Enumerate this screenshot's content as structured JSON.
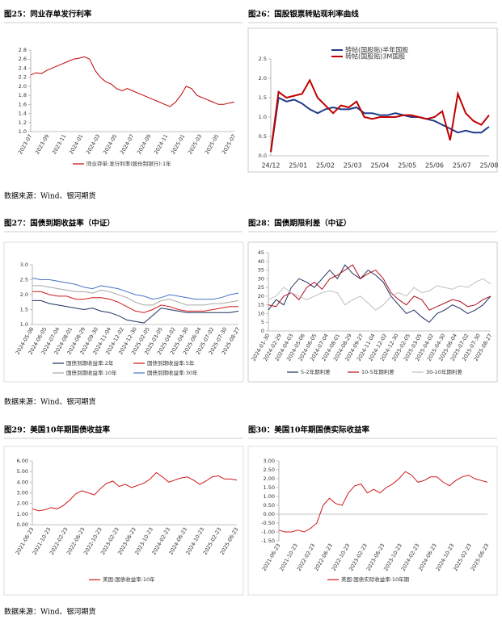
{
  "chart_data": [
    {
      "type": "line",
      "title": "图25：同业存单发行利率",
      "xticks": [
        "2023-07",
        "2023-09",
        "2023-11",
        "2024-01",
        "2024-03",
        "2024-05",
        "2024-07",
        "2024-09",
        "2024-11",
        "2025-01",
        "2025-03",
        "2025-05",
        "2025-07"
      ],
      "ylim": [
        1.0,
        2.8
      ],
      "yticks": [
        {
          "value": 1.0,
          "label": "1.0"
        },
        1.2,
        1.4,
        1.6,
        1.8,
        {
          "value": 2.0,
          "label": "2.0"
        },
        2.2,
        2.4,
        2.6,
        2.8
      ],
      "series": [
        {
          "name": "同业存单:发行利率(股份制银行):1年",
          "color": "#c00000",
          "values": [
            2.25,
            2.3,
            2.28,
            2.35,
            2.4,
            2.45,
            2.5,
            2.55,
            2.6,
            2.62,
            2.65,
            2.6,
            2.35,
            2.2,
            2.1,
            2.05,
            1.95,
            1.9,
            1.95,
            1.9,
            1.85,
            1.8,
            1.75,
            1.7,
            1.65,
            1.6,
            1.55,
            1.65,
            1.8,
            2.0,
            1.95,
            1.8,
            1.75,
            1.7,
            1.65,
            1.6,
            1.6,
            1.63,
            1.65
          ]
        }
      ]
    },
    {
      "type": "line",
      "title": "图26：国股银票转贴现利率曲线",
      "xticks": [
        "24/12",
        "25/01",
        "25/02",
        "25/03",
        "25/04",
        "25/05",
        "25/06",
        "25/07",
        "25/08"
      ],
      "ylim": [
        0,
        2.5
      ],
      "yticks": [
        {
          "value": 0,
          "label": "0.0"
        },
        0.5,
        {
          "value": 1,
          "label": "1.0"
        },
        1.5,
        {
          "value": 2,
          "label": "2.0"
        },
        2.5
      ],
      "series": [
        {
          "name": "转帖(国股贴)半年国股",
          "color": "#1f3c88",
          "values": [
            0.1,
            1.5,
            1.4,
            1.45,
            1.35,
            1.2,
            1.1,
            1.2,
            1.25,
            1.2,
            1.2,
            1.25,
            1.1,
            1.1,
            1.05,
            1.05,
            1.1,
            1.05,
            1.0,
            1.0,
            0.95,
            0.9,
            0.8,
            0.7,
            0.6,
            0.65,
            0.6,
            0.6,
            0.75
          ]
        },
        {
          "name": "转帖(国股贴)3M国股",
          "color": "#c00000",
          "values": [
            0.1,
            1.65,
            1.5,
            1.55,
            1.6,
            1.95,
            1.5,
            1.3,
            1.1,
            1.3,
            1.25,
            1.4,
            1.0,
            0.95,
            1.0,
            1.0,
            1.0,
            1.05,
            1.05,
            1.0,
            0.95,
            1.0,
            1.15,
            0.4,
            1.6,
            1.1,
            0.9,
            0.8,
            1.05
          ]
        }
      ]
    },
    {
      "type": "line",
      "title": "图27：国债到期收益率（中证）",
      "xticks": [
        "2024-05-08",
        "2024-06-05",
        "2024-07-04",
        "2024-08-01",
        "2024-08-29",
        "2024-09-30",
        "2024-11-04",
        "2024-12-02",
        "2024-12-30",
        "2025-02-05",
        "2025-03-05",
        "2025-04-02",
        "2025-04-30",
        "2025-06-04",
        "2025-07-02",
        "2025-07-30",
        "2025-08-27"
      ],
      "ylim": [
        1.0,
        3.0
      ],
      "yticks": [
        {
          "value": 1.0,
          "label": "1.0"
        },
        1.5,
        {
          "value": 2.0,
          "label": "2.0"
        },
        2.5,
        {
          "value": 3.0,
          "label": "3.0"
        }
      ],
      "series": [
        {
          "name": "国债到期收益率:2年",
          "color": "#1f2f5c",
          "values": [
            1.8,
            1.8,
            1.7,
            1.65,
            1.6,
            1.55,
            1.5,
            1.55,
            1.45,
            1.4,
            1.3,
            1.15,
            1.1,
            1.05,
            1.3,
            1.55,
            1.5,
            1.45,
            1.4,
            1.4,
            1.4,
            1.4,
            1.4,
            1.4,
            1.45
          ]
        },
        {
          "name": "国债到期收益率:5年",
          "color": "#d01818",
          "values": [
            2.1,
            2.1,
            2.0,
            1.95,
            1.95,
            1.85,
            1.85,
            1.9,
            1.9,
            1.85,
            1.75,
            1.6,
            1.45,
            1.4,
            1.5,
            1.65,
            1.6,
            1.5,
            1.45,
            1.45,
            1.45,
            1.5,
            1.55,
            1.6,
            1.6
          ]
        },
        {
          "name": "国债到期收益率:10年",
          "color": "#a6a6a6",
          "values": [
            2.3,
            2.3,
            2.25,
            2.2,
            2.15,
            2.1,
            2.1,
            2.05,
            2.15,
            2.1,
            2.0,
            1.9,
            1.75,
            1.65,
            1.65,
            1.8,
            1.85,
            1.75,
            1.65,
            1.65,
            1.65,
            1.7,
            1.7,
            1.75,
            1.8
          ]
        },
        {
          "name": "国债到期收益率:30年",
          "color": "#4472c4",
          "values": [
            2.55,
            2.5,
            2.5,
            2.45,
            2.4,
            2.35,
            2.25,
            2.2,
            2.3,
            2.25,
            2.2,
            2.1,
            2.0,
            1.95,
            1.85,
            1.9,
            2.0,
            1.95,
            1.9,
            1.85,
            1.85,
            1.85,
            1.9,
            2.0,
            2.05
          ]
        }
      ]
    },
    {
      "type": "line",
      "title": "图28：国债期限利差（中证）",
      "xticks": [
        "2024-01-30",
        "2024-02-29",
        "2024-04-03",
        "2024-05-06",
        "2024-06-05",
        "2024-07-04",
        "2024-08-01",
        "2024-08-29",
        "2024-09-27",
        "2024-11-04",
        "2024-12-02",
        "2024-12-30",
        "2025-02-05",
        "2025-03-05",
        "2025-04-02",
        "2025-04-30",
        "2025-06-04",
        "2025-07-02",
        "2025-07-30",
        "2025-08-27"
      ],
      "ylim": [
        0,
        45
      ],
      "yticks": [
        0,
        5,
        10,
        15,
        20,
        25,
        30,
        35,
        40,
        45
      ],
      "series": [
        {
          "name": "5-2年期利差",
          "color": "#1f2f5c",
          "values": [
            12,
            18,
            15,
            25,
            30,
            28,
            25,
            30,
            35,
            30,
            38,
            33,
            30,
            35,
            32,
            28,
            20,
            15,
            10,
            12,
            8,
            5,
            10,
            12,
            15,
            13,
            10,
            12,
            15,
            20
          ]
        },
        {
          "name": "10-5年期利差",
          "color": "#b01020",
          "values": [
            15,
            14,
            20,
            22,
            18,
            25,
            28,
            24,
            30,
            32,
            35,
            38,
            30,
            33,
            35,
            30,
            22,
            18,
            15,
            20,
            18,
            12,
            14,
            16,
            18,
            17,
            14,
            15,
            18,
            20
          ]
        },
        {
          "name": "30-10年期利差",
          "color": "#bfbfbf",
          "values": [
            18,
            20,
            25,
            22,
            20,
            18,
            20,
            22,
            23,
            22,
            15,
            18,
            20,
            16,
            12,
            15,
            20,
            22,
            20,
            25,
            22,
            23,
            26,
            25,
            24,
            26,
            25,
            28,
            30,
            27
          ]
        }
      ]
    },
    {
      "type": "line",
      "title": "图29：美国10年期国债收益率",
      "xticks": [
        "2021-06-23",
        "2021-10-23",
        "2022-02-23",
        "2022-06-23",
        "2022-10-23",
        "2023-02-23",
        "2023-06-23",
        "2023-10-23",
        "2024-02-23",
        "2024-06-23",
        "2024-10-23",
        "2025-02-23",
        "2025-06-23"
      ],
      "ylim": [
        0,
        6
      ],
      "yticks": [
        {
          "value": 0,
          "label": "0.00"
        },
        {
          "value": 1,
          "label": "1.00"
        },
        {
          "value": 2,
          "label": "2.00"
        },
        {
          "value": 3,
          "label": "3.00"
        },
        {
          "value": 4,
          "label": "4.00"
        },
        {
          "value": 5,
          "label": "5.00"
        },
        {
          "value": 6,
          "label": "6.00"
        }
      ],
      "series": [
        {
          "name": "美国:国债收益率:10年",
          "color": "#d01818",
          "values": [
            1.5,
            1.3,
            1.4,
            1.6,
            1.5,
            1.8,
            2.3,
            2.9,
            3.2,
            3.0,
            2.8,
            3.4,
            3.9,
            4.1,
            3.6,
            3.8,
            3.5,
            3.7,
            3.9,
            4.3,
            4.9,
            4.5,
            4.0,
            4.2,
            4.4,
            4.5,
            4.2,
            3.8,
            4.1,
            4.5,
            4.6,
            4.3,
            4.3,
            4.2
          ]
        }
      ]
    },
    {
      "type": "line",
      "title": "图30：美国10年期国债实际收益率",
      "xticks": [
        "2021-06-23",
        "2021-10-23",
        "2022-02-23",
        "2022-06-23",
        "2022-10-23",
        "2023-02-23",
        "2023-06-23",
        "2023-10-23",
        "2024-02-23",
        "2024-06-23",
        "2024-10-23",
        "2025-02-23",
        "2025-06-23"
      ],
      "ylim": [
        -1.5,
        3.0
      ],
      "yticks": [
        {
          "value": -1.5,
          "label": "-1.50"
        },
        {
          "value": -1.0,
          "label": "-1.00"
        },
        {
          "value": -0.5,
          "label": "-0.50"
        },
        {
          "value": 0,
          "label": "0.00"
        },
        {
          "value": 0.5,
          "label": "0.50"
        },
        {
          "value": 1.0,
          "label": "1.00"
        },
        {
          "value": 1.5,
          "label": "1.50"
        },
        {
          "value": 2.0,
          "label": "2.00"
        },
        {
          "value": 2.5,
          "label": "2.50"
        },
        {
          "value": 3.0,
          "label": "3.00"
        }
      ],
      "series": [
        {
          "name": "美国:国债实际收益率:10年期",
          "color": "#d01818",
          "values": [
            -0.9,
            -1.0,
            -1.0,
            -0.9,
            -1.0,
            -0.8,
            -0.5,
            0.5,
            0.9,
            0.6,
            0.5,
            1.2,
            1.6,
            1.7,
            1.2,
            1.4,
            1.2,
            1.5,
            1.7,
            2.0,
            2.4,
            2.2,
            1.8,
            1.9,
            2.1,
            2.1,
            1.8,
            1.6,
            1.9,
            2.1,
            2.2,
            2.0,
            1.9,
            1.8
          ]
        }
      ]
    }
  ],
  "sources": [
    "数据来源：Wind、银河期货",
    "数据来源：Wind、银河期货",
    "数据来源：Wind、银河期货"
  ]
}
